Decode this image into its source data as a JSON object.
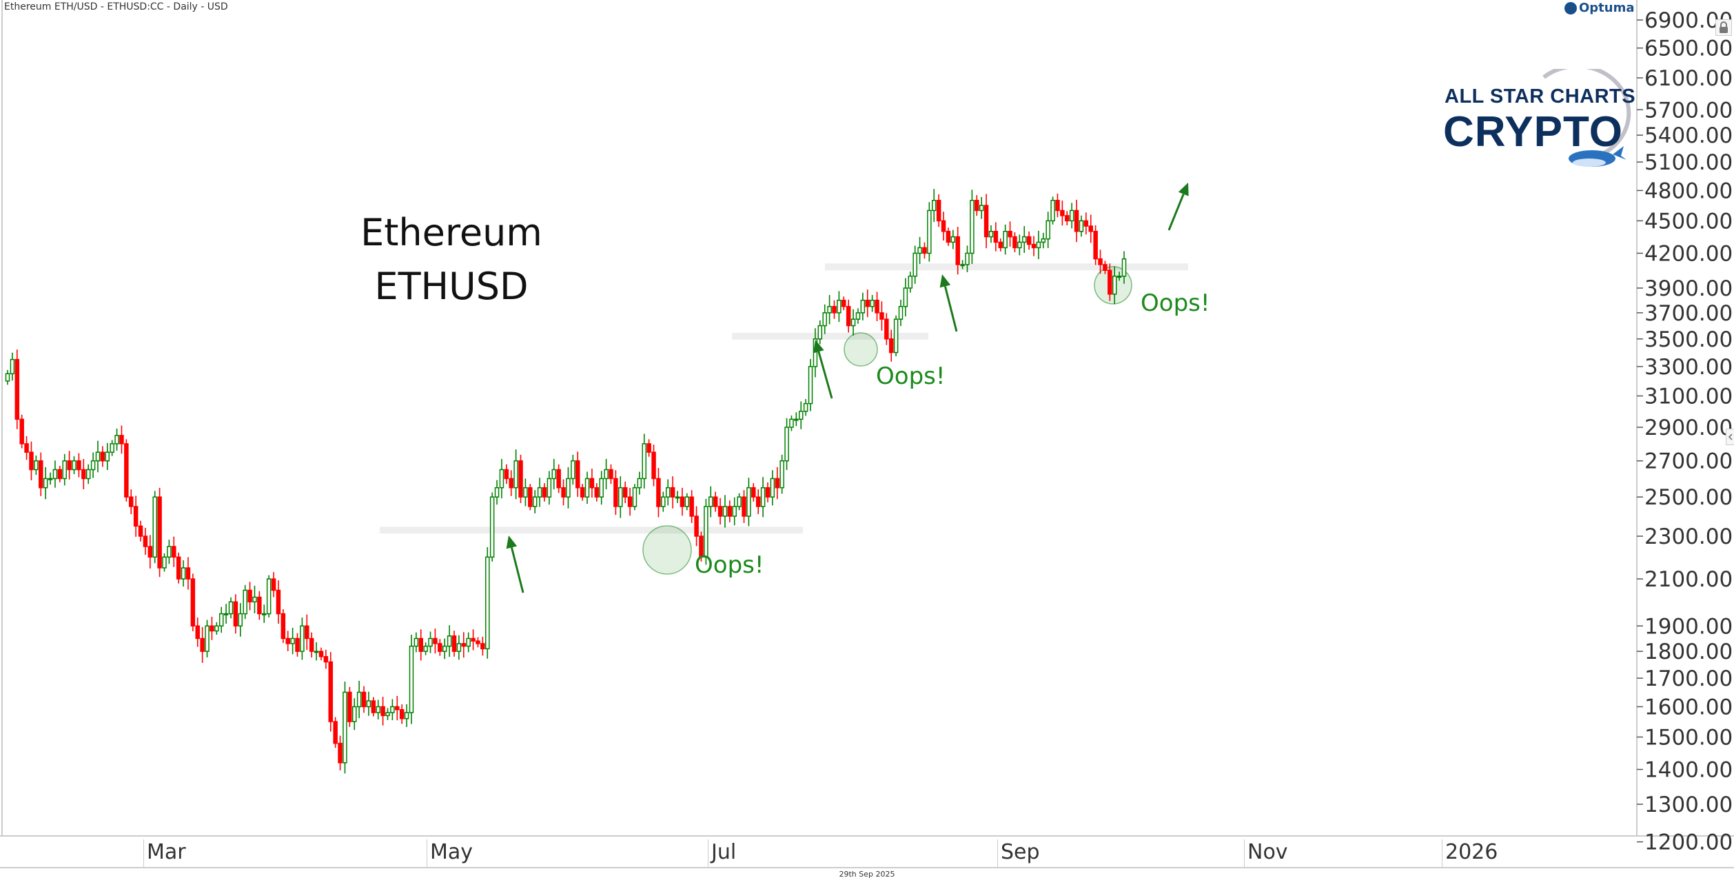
{
  "header": {
    "title": "Ethereum ETH/USD - ETHUSD:CC - Daily - USD"
  },
  "branding": {
    "optuma": "Optuma",
    "logo_line1": "ALL STAR CHARTS",
    "logo_line2": "CRYPTO"
  },
  "footer": {
    "date": "29th Sep 2025"
  },
  "icons": {
    "lock": "lock-icon",
    "collapse": "chevron-left-icon"
  },
  "colors": {
    "up": "#008000",
    "down": "#ff0000",
    "band": "#eeeeee",
    "annotation": "#1b8a1b",
    "logo_navy": "#0d2f5e"
  },
  "chart_data": {
    "type": "candlestick",
    "title": "Ethereum",
    "subtitle": "ETHUSD",
    "scale": "log",
    "ylim": [
      1200,
      6900
    ],
    "y_ticks": [
      6900,
      6500,
      6100,
      5700,
      5400,
      5100,
      4800,
      4500,
      4200,
      3900,
      3700,
      3500,
      3300,
      3100,
      2900,
      2700,
      2500,
      2300,
      2100,
      1900,
      1800,
      1700,
      1600,
      1500,
      1400,
      1300,
      1200
    ],
    "x_ticks": [
      "Mar",
      "May",
      "Jul",
      "Sep",
      "Nov",
      "2026"
    ],
    "last_date": "29th Sep 2025",
    "first_open": 3200,
    "closes": [
      3250,
      3350,
      2950,
      2800,
      2750,
      2650,
      2700,
      2550,
      2600,
      2600,
      2650,
      2600,
      2700,
      2650,
      2700,
      2650,
      2600,
      2650,
      2700,
      2750,
      2700,
      2750,
      2800,
      2850,
      2800,
      2500,
      2450,
      2350,
      2300,
      2250,
      2200,
      2500,
      2150,
      2200,
      2250,
      2200,
      2100,
      2150,
      2100,
      1900,
      1850,
      1800,
      1900,
      1880,
      1900,
      1950,
      1950,
      2000,
      1900,
      1950,
      2050,
      2000,
      2020,
      1950,
      1950,
      2100,
      2050,
      1950,
      1850,
      1830,
      1850,
      1800,
      1900,
      1850,
      1800,
      1800,
      1780,
      1760,
      1550,
      1480,
      1420,
      1650,
      1550,
      1600,
      1650,
      1600,
      1620,
      1580,
      1600,
      1570,
      1580,
      1600,
      1590,
      1560,
      1580,
      1820,
      1850,
      1800,
      1820,
      1850,
      1830,
      1800,
      1820,
      1860,
      1800,
      1830,
      1820,
      1850,
      1840,
      1830,
      1810,
      2200,
      2500,
      2550,
      2650,
      2600,
      2550,
      2700,
      2500,
      2550,
      2450,
      2500,
      2550,
      2500,
      2600,
      2650,
      2550,
      2500,
      2600,
      2700,
      2550,
      2500,
      2600,
      2550,
      2500,
      2600,
      2650,
      2600,
      2450,
      2550,
      2500,
      2450,
      2550,
      2600,
      2800,
      2750,
      2600,
      2450,
      2500,
      2550,
      2500,
      2500,
      2450,
      2500,
      2400,
      2300,
      2200,
      2450,
      2500,
      2450,
      2400,
      2450,
      2400,
      2450,
      2500,
      2400,
      2550,
      2500,
      2450,
      2550,
      2500,
      2600,
      2550,
      2700,
      2900,
      2950,
      2950,
      3000,
      3050,
      3300,
      3500,
      3600,
      3700,
      3750,
      3700,
      3800,
      3750,
      3600,
      3650,
      3700,
      3800,
      3750,
      3800,
      3700,
      3650,
      3500,
      3400,
      3650,
      3750,
      3900,
      4000,
      4200,
      4250,
      4200,
      4600,
      4700,
      4500,
      4400,
      4300,
      4350,
      4100,
      4100,
      4200,
      4700,
      4600,
      4650,
      4350,
      4400,
      4300,
      4250,
      4400,
      4350,
      4250,
      4300,
      4350,
      4280,
      4250,
      4300,
      4330,
      4500,
      4700,
      4600,
      4550,
      4500,
      4600,
      4400,
      4500,
      4450,
      4400,
      4150,
      4100,
      4050,
      3850,
      4000,
      4000,
      4150
    ],
    "annotations": {
      "support_levels": [
        2330,
        3520,
        4080
      ],
      "labels": [
        "Oops!",
        "Oops!",
        "Oops!"
      ]
    }
  }
}
